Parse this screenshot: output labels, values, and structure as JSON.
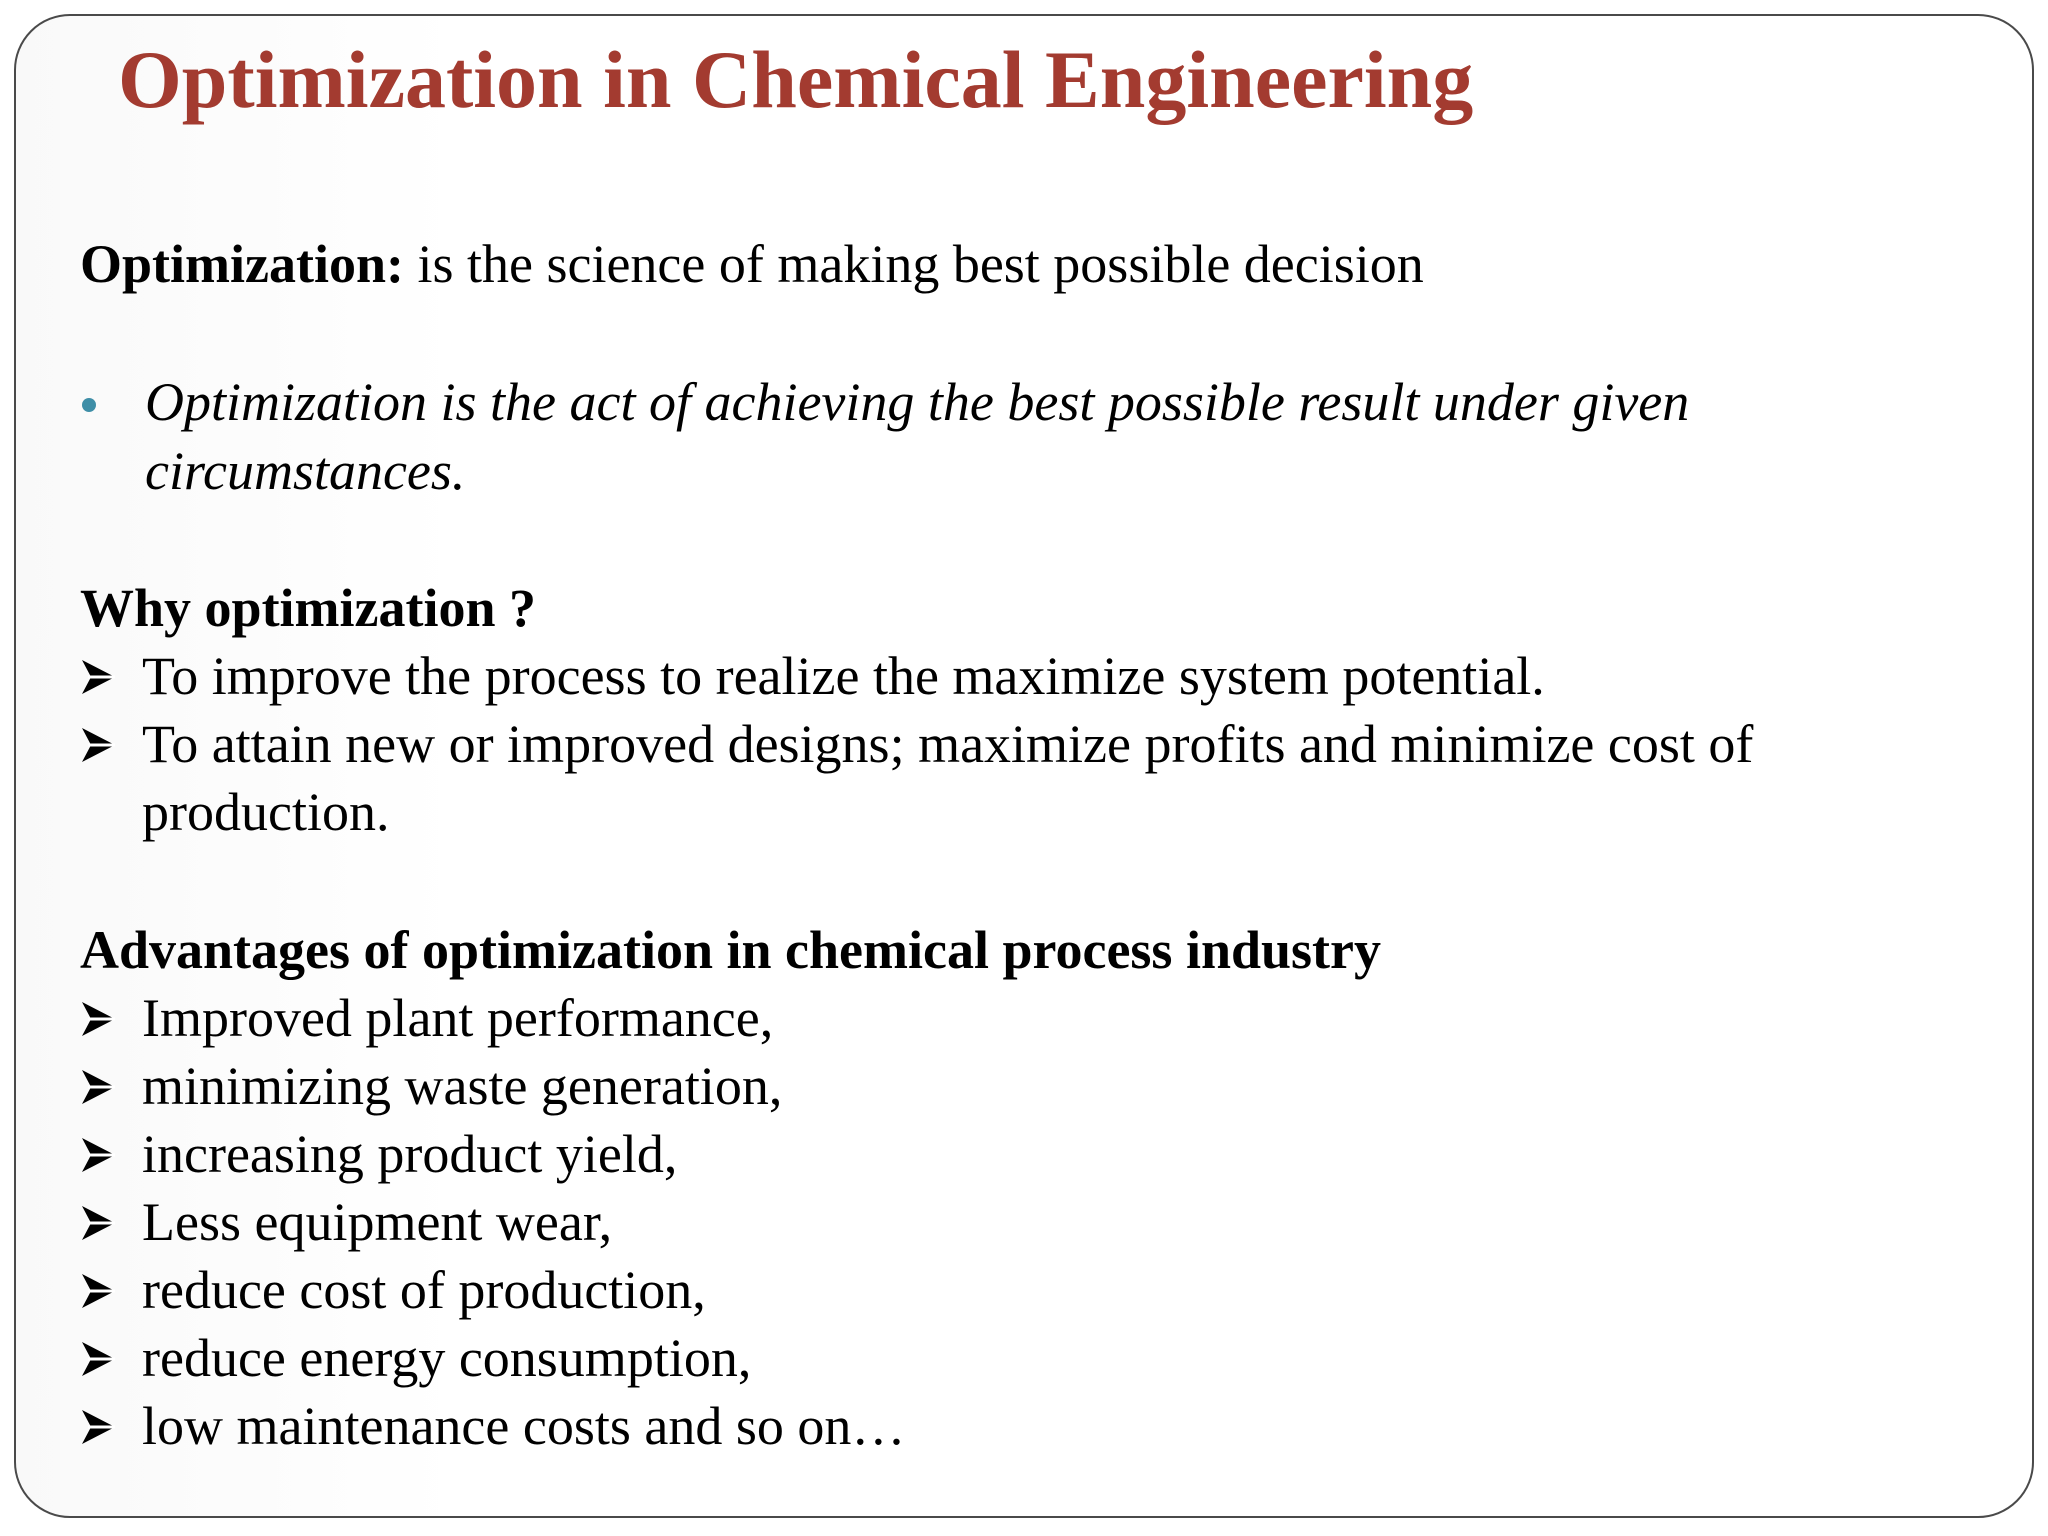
{
  "slide": {
    "title": "Optimization in Chemical Engineering",
    "title_color": "#a33b30",
    "bullet_color": "#3e8ea7",
    "definition": {
      "term": "Optimization:",
      "text": " is the science of making best possible decision"
    },
    "quote": {
      "line1": "Optimization is the act of achieving the  best possible result under given",
      "line2": "circumstances."
    },
    "why": {
      "heading": "Why optimization ?",
      "items": [
        "To improve the process to realize the maximize system potential.",
        "To attain new or improved designs; maximize profits and minimize cost of",
        "production."
      ]
    },
    "advantages": {
      "heading": "Advantages of optimization in chemical process industry",
      "items": [
        "Improved plant performance,",
        "minimizing waste generation,",
        "increasing product yield,",
        "Less equipment wear,",
        "reduce cost of production,",
        "reduce energy consumption,",
        "low maintenance costs and so on…"
      ]
    }
  }
}
